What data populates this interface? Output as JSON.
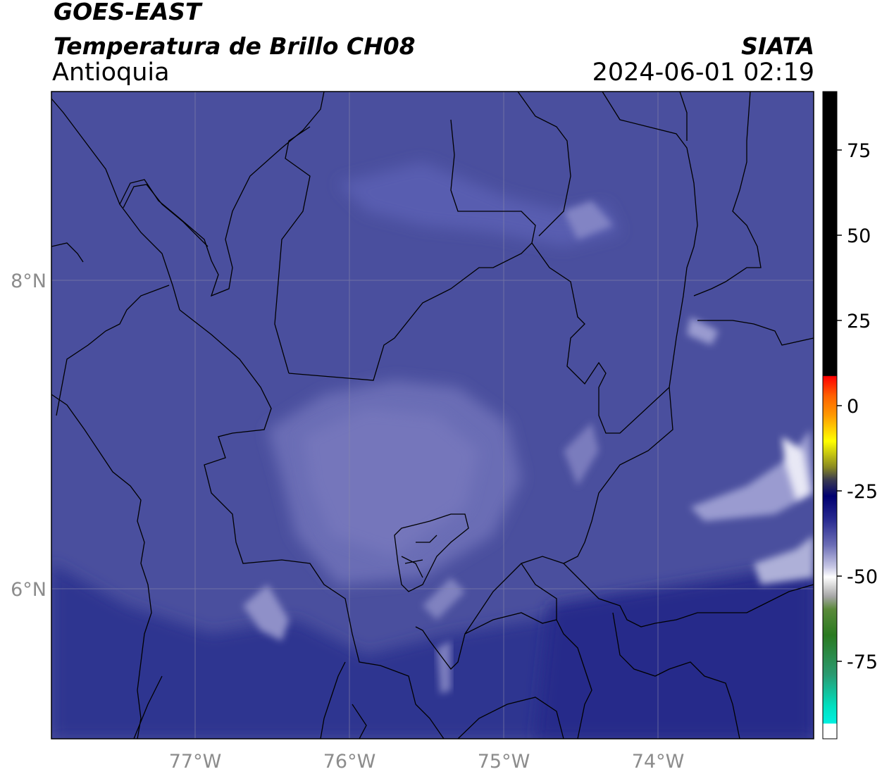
{
  "header": {
    "satellite": "GOES-EAST",
    "product": "Temperatura de Brillo CH08",
    "region": "Antioquia",
    "agency": "SIATA",
    "datetime": "2024-06-01 02:19"
  },
  "map": {
    "lon_ticks": [
      "77°W",
      "76°W",
      "75°W",
      "74°W"
    ],
    "lat_ticks": [
      "8°N",
      "6°N"
    ]
  },
  "colorbar": {
    "ticks": [
      "75",
      "50",
      "25",
      "0",
      "-25",
      "-50",
      "-75"
    ]
  },
  "colors": {
    "background_field": "#4a4f9e",
    "borders": "#000000"
  }
}
